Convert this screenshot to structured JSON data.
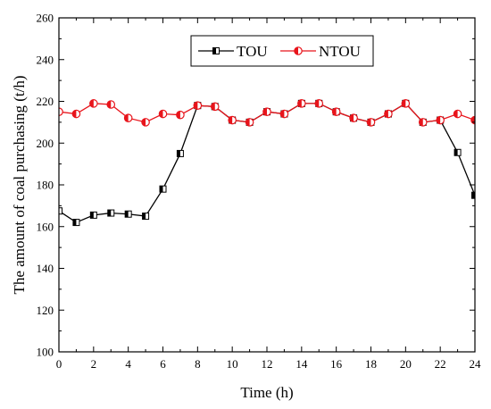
{
  "chart_data": {
    "type": "line",
    "title": "",
    "xlabel": "Time (h)",
    "ylabel": "The amount of coal purchasing (t/h)",
    "xlim": [
      0,
      24
    ],
    "ylim": [
      100,
      260
    ],
    "x_ticks": [
      0,
      2,
      4,
      6,
      8,
      10,
      12,
      14,
      16,
      18,
      20,
      22,
      24
    ],
    "y_ticks": [
      100,
      120,
      140,
      160,
      180,
      200,
      220,
      240,
      260
    ],
    "grid": false,
    "legend_position": "top-center",
    "x": [
      0,
      1,
      2,
      3,
      4,
      5,
      6,
      7,
      8,
      9,
      10,
      11,
      12,
      13,
      14,
      15,
      16,
      17,
      18,
      19,
      20,
      21,
      22,
      23,
      24
    ],
    "series": [
      {
        "name": "TOU",
        "color": "#000000",
        "marker": "half-filled-square",
        "values": [
          167.5,
          162,
          165.5,
          166.5,
          166,
          165,
          178,
          195,
          218,
          217.5,
          211,
          210,
          215,
          214,
          219,
          219,
          215,
          212,
          210,
          214,
          219,
          210,
          211,
          195.5,
          175
        ]
      },
      {
        "name": "NTOU",
        "color": "#e8141b",
        "marker": "half-filled-circle",
        "values": [
          215,
          214,
          219,
          218.5,
          212,
          210,
          214,
          213.5,
          218,
          217.5,
          211,
          210,
          215,
          214,
          219,
          219,
          215,
          212,
          210,
          214,
          219,
          210,
          211,
          214,
          211
        ]
      }
    ]
  }
}
